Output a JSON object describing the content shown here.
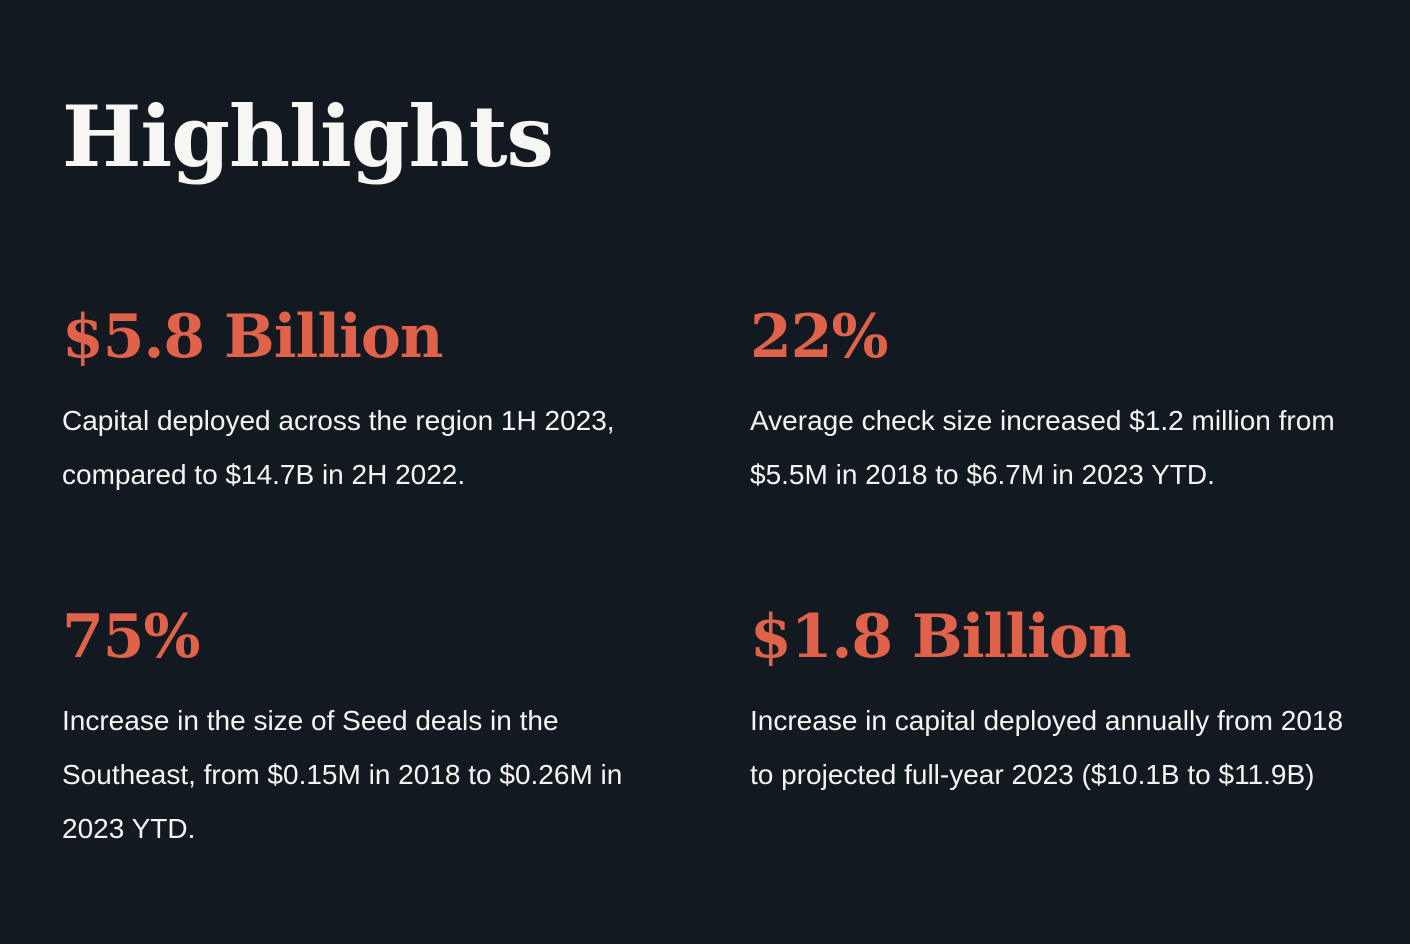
{
  "page": {
    "title": "Highlights"
  },
  "highlights": [
    {
      "stat": "$5.8 Billion",
      "description": "Capital deployed across the region 1H 2023, compared to $14.7B in 2H 2022."
    },
    {
      "stat": "22%",
      "description": "Average check size increased $1.2 million from $5.5M in 2018 to $6.7M in 2023 YTD."
    },
    {
      "stat": "75%",
      "description": "Increase in the size of Seed deals in the Southeast, from $0.15M in 2018 to $0.26M in 2023 YTD."
    },
    {
      "stat": "$1.8 Billion",
      "description": "Increase in capital deployed annually from 2018 to projected full-year 2023 ($10.1B to $11.9B)"
    }
  ],
  "colors": {
    "background": "#131920",
    "title": "#f6f7f2",
    "accent": "#e0624a",
    "body_text": "#f4f5f3"
  }
}
